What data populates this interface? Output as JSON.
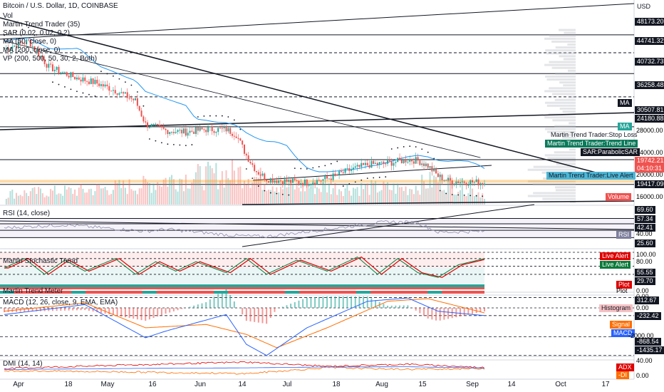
{
  "header": {
    "title": "Bitcoin / U.S. Dollar, 1D, COINBASE",
    "indicators": [
      "Vol",
      "Martin Trend Trader (35)",
      "SAR (0.02, 0.02, 0.2)",
      "MA (50, close, 0)",
      "MA (200, close, 0)",
      "VP (200, 500, 50, 30, 2, Both)"
    ]
  },
  "currency": "USD",
  "price_axis": {
    "ticks": [
      "28000.00",
      "24000.00",
      "20000.00",
      "16000.00"
    ],
    "hlines": [
      {
        "label": "48173.20",
        "value": 48173.2
      },
      {
        "label": "44741.32",
        "value": 44741.32
      },
      {
        "label": "40732.73",
        "value": 40732.73
      },
      {
        "label": "36258.48",
        "value": 36258.48
      },
      {
        "label": "30507.81",
        "value": 30507.81
      },
      {
        "label": "24180.88",
        "value": 24180.88
      },
      {
        "label": "19417.09",
        "value": 19417.09
      }
    ],
    "last_price": "19742.21",
    "countdown": "04:10:31",
    "tags": {
      "ma": "MA",
      "ma2": "MA",
      "stop_loss": "Martin Trend Trader:Stop Loss",
      "trend_line": "Martin Trend Trader:Trend Line",
      "sar": "SAR:ParabolicSAR",
      "live_alert": "Martin Trend Trader:Live Alert",
      "volume": "Volume"
    }
  },
  "rsi": {
    "title": "RSI (14, close)",
    "levels": [
      "69.60",
      "57.34",
      "42.41",
      "40.00",
      "25.60"
    ],
    "tag": "RSI"
  },
  "stoch": {
    "title": "Martin Stochastic Trend",
    "levels": [
      "100.00",
      "80.00",
      "55.55",
      "29.70",
      "0.00"
    ],
    "tags": [
      "Live Alert",
      "Live Alert",
      "Plot"
    ]
  },
  "meter": {
    "title": "Martin Trend Meter",
    "value": "0.00",
    "tag": "Plot"
  },
  "macd": {
    "title": "MACD (12, 26, close, 9, EMA, EMA)",
    "levels": [
      "312.67",
      "0.00",
      "-232.42",
      "-2000.00",
      "-868.54",
      "-1435.17"
    ],
    "tags": [
      "Histogram",
      "Signal",
      "MACD"
    ]
  },
  "dmi": {
    "title": "DMI (14, 14)",
    "levels": [
      "40.00",
      "0.00"
    ],
    "tags": [
      "ADX",
      "-DI"
    ]
  },
  "colors": {
    "up": "#26a69a",
    "down": "#ef5350",
    "ma50": "#2196f3",
    "ma200": "#131722",
    "macd": "#2962ff",
    "signal": "#ff6d00",
    "rsi": "#7e57c2"
  },
  "chart_data": {
    "type": "candlestick",
    "symbol": "BTCUSD",
    "x_labels": [
      "Apr",
      "18",
      "May",
      "16",
      "Jun",
      "14",
      "Jul",
      "18",
      "Aug",
      "15",
      "Sep",
      "14",
      "Oct",
      "17"
    ],
    "ylim": [
      15000,
      52000
    ],
    "last_price": 19742.21,
    "price_path": [
      [
        0,
        45500
      ],
      [
        12,
        47000
      ],
      [
        22,
        42000
      ],
      [
        35,
        40000
      ],
      [
        45,
        39000
      ],
      [
        55,
        37500
      ],
      [
        65,
        35500
      ],
      [
        70,
        31000
      ],
      [
        80,
        29800
      ],
      [
        90,
        29500
      ],
      [
        100,
        30000
      ],
      [
        110,
        30000
      ],
      [
        115,
        29000
      ],
      [
        120,
        25000
      ],
      [
        125,
        22000
      ],
      [
        130,
        20500
      ],
      [
        140,
        20000
      ],
      [
        150,
        19800
      ],
      [
        160,
        20500
      ],
      [
        170,
        22000
      ],
      [
        180,
        23200
      ],
      [
        190,
        23500
      ],
      [
        200,
        24200
      ],
      [
        205,
        24000
      ],
      [
        210,
        23000
      ],
      [
        215,
        21000
      ],
      [
        220,
        20100
      ],
      [
        230,
        19900
      ],
      [
        238,
        19742
      ]
    ],
    "volume_points": [
      [
        0,
        0.3
      ],
      [
        40,
        0.4
      ],
      [
        70,
        0.55
      ],
      [
        80,
        0.7
      ],
      [
        120,
        0.9
      ],
      [
        125,
        0.75
      ],
      [
        140,
        0.5
      ],
      [
        200,
        0.45
      ],
      [
        215,
        0.7
      ],
      [
        238,
        0.3
      ]
    ],
    "rsi_points": [
      [
        0,
        48
      ],
      [
        30,
        55
      ],
      [
        70,
        40
      ],
      [
        80,
        45
      ],
      [
        115,
        30
      ],
      [
        130,
        28
      ],
      [
        160,
        45
      ],
      [
        190,
        62
      ],
      [
        205,
        60
      ],
      [
        215,
        38
      ],
      [
        238,
        40
      ]
    ],
    "stoch_points": [
      [
        0,
        50
      ],
      [
        10,
        80
      ],
      [
        20,
        30
      ],
      [
        30,
        75
      ],
      [
        40,
        40
      ],
      [
        55,
        80
      ],
      [
        65,
        30
      ],
      [
        75,
        70
      ],
      [
        85,
        40
      ],
      [
        95,
        70
      ],
      [
        110,
        35
      ],
      [
        120,
        80
      ],
      [
        130,
        30
      ],
      [
        145,
        75
      ],
      [
        160,
        40
      ],
      [
        175,
        85
      ],
      [
        185,
        30
      ],
      [
        195,
        80
      ],
      [
        205,
        35
      ],
      [
        215,
        20
      ],
      [
        225,
        60
      ],
      [
        238,
        80
      ]
    ],
    "macd_points": [
      [
        0,
        -200
      ],
      [
        40,
        100
      ],
      [
        70,
        -900
      ],
      [
        80,
        -700
      ],
      [
        110,
        -200
      ],
      [
        120,
        -1100
      ],
      [
        130,
        -1435
      ],
      [
        150,
        -600
      ],
      [
        180,
        200
      ],
      [
        200,
        300
      ],
      [
        215,
        -100
      ],
      [
        238,
        -232
      ]
    ],
    "signal_points": [
      [
        0,
        -100
      ],
      [
        40,
        150
      ],
      [
        70,
        -600
      ],
      [
        100,
        -500
      ],
      [
        120,
        -800
      ],
      [
        135,
        -1200
      ],
      [
        160,
        -600
      ],
      [
        190,
        200
      ],
      [
        210,
        280
      ],
      [
        238,
        -150
      ]
    ],
    "dmi_points": [
      [
        0,
        20
      ],
      [
        60,
        28
      ],
      [
        120,
        35
      ],
      [
        160,
        25
      ],
      [
        200,
        30
      ],
      [
        238,
        22
      ]
    ],
    "dmi2_points": [
      [
        0,
        15
      ],
      [
        60,
        12
      ],
      [
        120,
        8
      ],
      [
        160,
        22
      ],
      [
        200,
        18
      ],
      [
        238,
        20
      ]
    ]
  }
}
